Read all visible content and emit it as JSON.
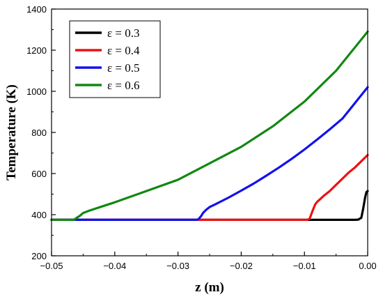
{
  "chart_data": {
    "type": "line",
    "title": "",
    "xlabel": "z (m)",
    "ylabel": "Temperature (K)",
    "xlim": [
      -0.05,
      0.0
    ],
    "ylim": [
      200,
      1400
    ],
    "xticks": [
      -0.05,
      -0.04,
      -0.03,
      -0.02,
      -0.01,
      0.0
    ],
    "xtick_labels": [
      "−0.05",
      "−0.04",
      "−0.03",
      "−0.02",
      "−0.01",
      "0.00"
    ],
    "yticks": [
      200,
      400,
      600,
      800,
      1000,
      1200,
      1400
    ],
    "ytick_labels": [
      "200",
      "400",
      "600",
      "800",
      "1000",
      "1200",
      "1400"
    ],
    "grid": false,
    "legend_position": "top-left",
    "series": [
      {
        "name": "ε = 0.3",
        "color": "#000000",
        "x": [
          -0.05,
          -0.002,
          -0.0015,
          -0.001,
          -0.0007,
          -0.0004,
          -0.0002,
          0.0
        ],
        "y": [
          375,
          375,
          376,
          385,
          430,
          485,
          510,
          515
        ]
      },
      {
        "name": "ε = 0.4",
        "color": "#ee1111",
        "x": [
          -0.05,
          -0.0095,
          -0.0092,
          -0.009,
          -0.0087,
          -0.0083,
          -0.008,
          -0.007,
          -0.006,
          -0.005,
          -0.004,
          -0.003,
          -0.002,
          -0.001,
          0.0
        ],
        "y": [
          375,
          375,
          380,
          395,
          420,
          450,
          462,
          490,
          515,
          545,
          575,
          605,
          630,
          660,
          690
        ]
      },
      {
        "name": "ε = 0.5",
        "color": "#1111ee",
        "x": [
          -0.05,
          -0.027,
          -0.0267,
          -0.0263,
          -0.026,
          -0.0255,
          -0.025,
          -0.024,
          -0.022,
          -0.02,
          -0.018,
          -0.016,
          -0.014,
          -0.012,
          -0.01,
          -0.008,
          -0.006,
          -0.004,
          -0.002,
          0.0
        ],
        "y": [
          375,
          375,
          380,
          395,
          410,
          425,
          437,
          452,
          483,
          517,
          552,
          590,
          630,
          672,
          717,
          765,
          815,
          867,
          943,
          1020
        ]
      },
      {
        "name": "ε = 0.6",
        "color": "#118811",
        "x": [
          -0.05,
          -0.0465,
          -0.046,
          -0.0455,
          -0.045,
          -0.044,
          -0.042,
          -0.04,
          -0.035,
          -0.03,
          -0.025,
          -0.02,
          -0.015,
          -0.01,
          -0.005,
          0.0
        ],
        "y": [
          375,
          375,
          385,
          395,
          408,
          420,
          440,
          460,
          515,
          570,
          650,
          730,
          830,
          950,
          1100,
          1290
        ]
      }
    ]
  }
}
